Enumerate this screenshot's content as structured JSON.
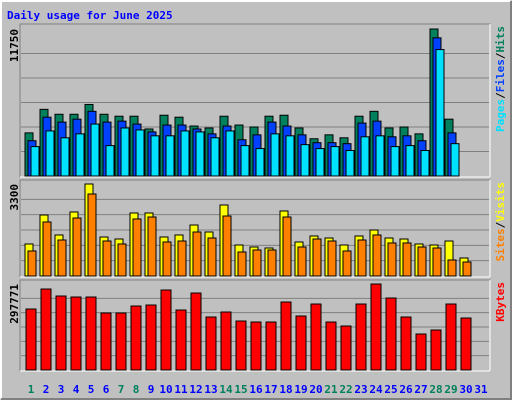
{
  "chart_data": [
    {
      "type": "bar",
      "title": "Daily usage for June 2025",
      "ylim": [
        0,
        11750
      ],
      "yticks": [
        11750
      ],
      "separator": "/",
      "series": [
        {
          "name": "Hits",
          "color": "#00805c",
          "values": [
            3447,
            5327,
            4935,
            4935,
            5718,
            4935,
            4778,
            4778,
            3760,
            4857,
            4700,
            3995,
            3838,
            4778,
            4073,
            3917,
            4778,
            4857,
            3838,
            2977,
            3290,
            3055,
            4778,
            5170,
            3838,
            3917,
            3368,
            11750,
            4543,
            null
          ]
        },
        {
          "name": "Files",
          "color": "#0040ff",
          "values": [
            2820,
            4700,
            4308,
            4543,
            5170,
            4308,
            4386,
            4151,
            3525,
            4073,
            4073,
            3760,
            3368,
            3995,
            2898,
            3290,
            4308,
            3995,
            3290,
            2663,
            2663,
            2585,
            4230,
            4386,
            3133,
            3212,
            2820,
            11045,
            3447,
            null
          ]
        },
        {
          "name": "Pages",
          "color": "#00e0ff",
          "values": [
            2350,
            3603,
            3055,
            3368,
            4151,
            2428,
            3838,
            3682,
            3212,
            3212,
            3603,
            3525,
            3055,
            3603,
            2428,
            2193,
            3368,
            3212,
            2507,
            2193,
            2350,
            2037,
            3133,
            3212,
            2350,
            2428,
            2037,
            10105,
            2585,
            null
          ]
        }
      ]
    },
    {
      "type": "bar",
      "ylim": [
        0,
        3300
      ],
      "yticks": [
        3300
      ],
      "separator": "/",
      "series": [
        {
          "name": "Visits",
          "color": "#ffff00",
          "values": [
            1148,
            2188,
            1471,
            2296,
            3300,
            1399,
            1327,
            2260,
            2260,
            1399,
            1471,
            1829,
            1578,
            2547,
            1112,
            1040,
            1004,
            2332,
            1220,
            1435,
            1363,
            1112,
            1435,
            1650,
            1363,
            1327,
            1148,
            1112,
            1255,
            646,
            null
          ]
        },
        {
          "name": "Sites",
          "color": "#ff8000",
          "values": [
            897,
            1937,
            1291,
            2080,
            2941,
            1255,
            1148,
            2045,
            2116,
            1220,
            1255,
            1578,
            1363,
            2152,
            861,
            933,
            933,
            2116,
            1040,
            1327,
            1255,
            897,
            1291,
            1471,
            1184,
            1184,
            1040,
            1004,
            574,
            502,
            null
          ]
        }
      ]
    },
    {
      "type": "bar",
      "ylim": [
        0,
        297771
      ],
      "yticks": [
        297771
      ],
      "categories": [
        "1",
        "2",
        "3",
        "4",
        "5",
        "6",
        "7",
        "8",
        "9",
        "10",
        "11",
        "12",
        "13",
        "14",
        "15",
        "16",
        "17",
        "18",
        "19",
        "20",
        "21",
        "22",
        "23",
        "24",
        "25",
        "26",
        "27",
        "28",
        "29",
        "30",
        "31"
      ],
      "category_colors": [
        "#00805c",
        "#0000ff",
        "#0000ff",
        "#0000ff",
        "#0000ff",
        "#0000ff",
        "#00805c",
        "#00805c",
        "#0000ff",
        "#0000ff",
        "#0000ff",
        "#0000ff",
        "#0000ff",
        "#00805c",
        "#00805c",
        "#0000ff",
        "#0000ff",
        "#0000ff",
        "#0000ff",
        "#0000ff",
        "#00805c",
        "#00805c",
        "#0000ff",
        "#0000ff",
        "#0000ff",
        "#0000ff",
        "#0000ff",
        "#00805c",
        "#00805c",
        "#0000ff",
        "#0000ff"
      ],
      "series": [
        {
          "name": "KBytes",
          "color": "#ff0000",
          "values": [
            211182,
            280422,
            256188,
            252726,
            252726,
            197334,
            197334,
            221568,
            225030,
            276960,
            207720,
            266574,
            183486,
            200796,
            169638,
            166176,
            166176,
            235416,
            186948,
            228492,
            166176,
            152328,
            228492,
            297771,
            249264,
            183486,
            124632,
            138480,
            228492,
            180024,
            null
          ]
        }
      ]
    }
  ]
}
